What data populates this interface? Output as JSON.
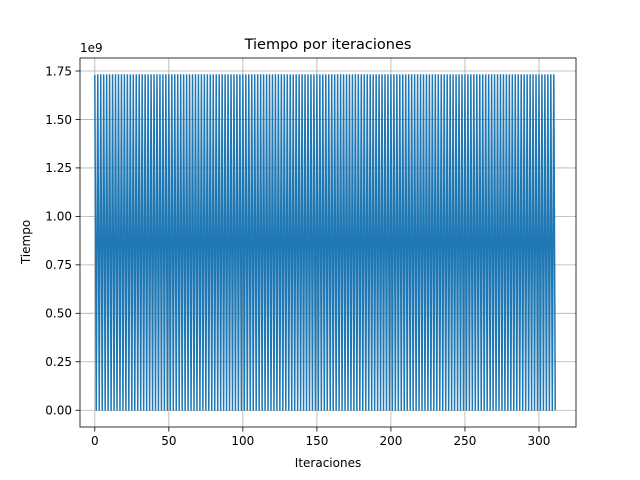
{
  "chart_data": {
    "type": "line",
    "title": "Tiempo por iteraciones",
    "xlabel": "Iteraciones",
    "ylabel": "Tiempo",
    "y_offset_text": "1e9",
    "y_scale": 1000000000,
    "xlim": [
      -10,
      325
    ],
    "ylim": [
      -0.0865,
      1.817
    ],
    "xticks": [
      0,
      50,
      100,
      150,
      200,
      250,
      300
    ],
    "xtick_labels": [
      "0",
      "50",
      "100",
      "150",
      "200",
      "250",
      "300"
    ],
    "yticks": [
      0.0,
      0.25,
      0.5,
      0.75,
      1.0,
      1.25,
      1.5,
      1.75
    ],
    "ytick_labels": [
      "0.00",
      "0.25",
      "0.50",
      "0.75",
      "1.00",
      "1.25",
      "1.50",
      "1.75"
    ],
    "grid": true,
    "color": "#1f77b4",
    "series": [
      {
        "pattern": "alternating",
        "x_start": 0,
        "x_end": 311,
        "step": 1,
        "high": 1.73,
        "low": 0.0
      }
    ]
  }
}
